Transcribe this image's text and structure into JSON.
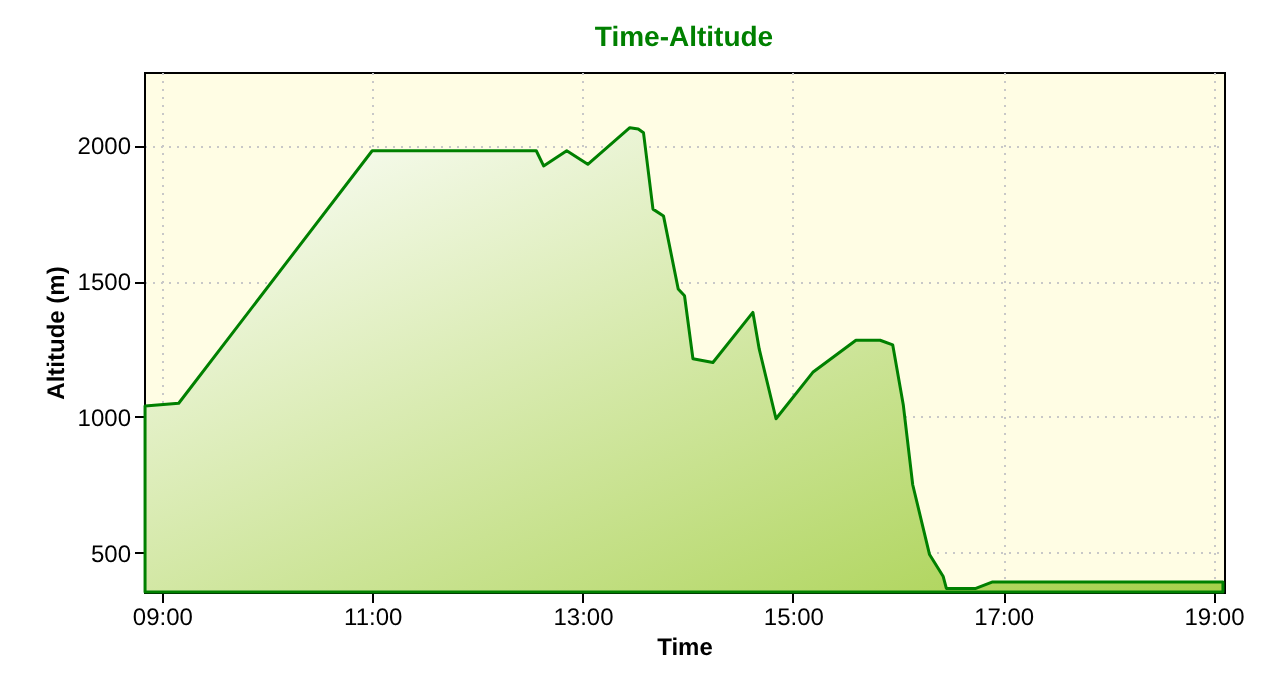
{
  "chart_data": {
    "type": "area",
    "title": "Time-Altitude",
    "xlabel": "Time",
    "ylabel": "Altitude (m)",
    "x": [
      8.84,
      9.16,
      11.0,
      12.56,
      12.63,
      12.85,
      13.05,
      13.45,
      13.53,
      13.58,
      13.67,
      13.77,
      13.91,
      13.97,
      14.05,
      14.24,
      14.62,
      14.68,
      14.84,
      15.19,
      15.6,
      15.83,
      15.95,
      16.05,
      16.14,
      16.3,
      16.43,
      16.46,
      16.74,
      16.9,
      19.09
    ],
    "series": [
      {
        "color": "#008000",
        "values": [
          1040,
          1050,
          1980,
          1980,
          1924,
          1980,
          1930,
          2065,
          2060,
          2046,
          1765,
          1740,
          1471,
          1446,
          1214,
          1200,
          1385,
          1250,
          993,
          1164,
          1282,
          1282,
          1265,
          1045,
          750,
          493,
          412,
          368,
          368,
          392,
          392
        ]
      }
    ],
    "xlim": [
      8.83,
      19.1
    ],
    "ylim": [
      355,
      2270
    ],
    "xticks": [
      {
        "value": 9,
        "label": "09:00"
      },
      {
        "value": 11,
        "label": "11:00"
      },
      {
        "value": 13,
        "label": "13:00"
      },
      {
        "value": 15,
        "label": "15:00"
      },
      {
        "value": 17,
        "label": "17:00"
      },
      {
        "value": 19,
        "label": "19:00"
      }
    ],
    "yticks": [
      500,
      1000,
      1500,
      2000
    ],
    "grid": true,
    "line_style": "solid"
  }
}
